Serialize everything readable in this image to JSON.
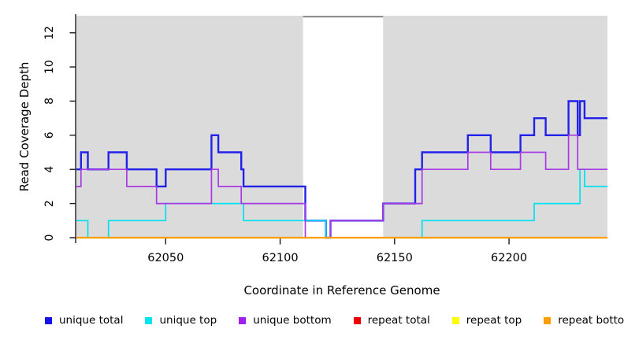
{
  "figure": {
    "ylabel": "Read Coverage Depth",
    "xlabel": "Coordinate in Reference Genome"
  },
  "chart_data": {
    "type": "line",
    "subtype": "step-coverage-plot",
    "title": "",
    "xlabel": "Coordinate in Reference Genome",
    "ylabel": "Read Coverage Depth",
    "xlim": [
      62011,
      62243
    ],
    "ylim": [
      0,
      13
    ],
    "x_ticks": [
      62050,
      62100,
      62150,
      62200
    ],
    "y_ticks": [
      0,
      2,
      4,
      6,
      8,
      10,
      12
    ],
    "grid": false,
    "legend_position": "bottom",
    "plot_background": "#DBDBDB",
    "axis_color": "#1a1a1a",
    "masked_region": {
      "from": 62110,
      "to": 62145,
      "color": "#FFFFFF",
      "top_bar_color": "#8F8F8F"
    },
    "series": [
      {
        "name": "unique total",
        "color": "#2121EA",
        "line_width": 2.4,
        "steps": [
          [
            62011,
            4
          ],
          [
            62013,
            5
          ],
          [
            62016,
            4
          ],
          [
            62025,
            5
          ],
          [
            62033,
            4
          ],
          [
            62046,
            3
          ],
          [
            62050,
            4
          ],
          [
            62070,
            6
          ],
          [
            62073,
            5
          ],
          [
            62083,
            4
          ],
          [
            62084,
            3
          ],
          [
            62111,
            1
          ],
          [
            62120,
            0
          ],
          [
            62122,
            1
          ],
          [
            62145,
            2
          ],
          [
            62159,
            4
          ],
          [
            62162,
            5
          ],
          [
            62182,
            6
          ],
          [
            62192,
            5
          ],
          [
            62205,
            6
          ],
          [
            62211,
            7
          ],
          [
            62216,
            6
          ],
          [
            62226,
            8
          ],
          [
            62230,
            6
          ],
          [
            62231,
            8
          ],
          [
            62233,
            7
          ]
        ]
      },
      {
        "name": "unique top",
        "color": "#00E1EF",
        "line_width": 1.7,
        "steps": [
          [
            62011,
            1
          ],
          [
            62016,
            0
          ],
          [
            62025,
            1
          ],
          [
            62050,
            2
          ],
          [
            62084,
            1
          ],
          [
            62120,
            0
          ],
          [
            62162,
            1
          ],
          [
            62211,
            2
          ],
          [
            62231,
            4
          ],
          [
            62233,
            3
          ]
        ]
      },
      {
        "name": "unique bottom",
        "color": "#A63BE6",
        "line_width": 1.7,
        "steps": [
          [
            62011,
            3
          ],
          [
            62013,
            4
          ],
          [
            62033,
            3
          ],
          [
            62046,
            2
          ],
          [
            62070,
            4
          ],
          [
            62073,
            3
          ],
          [
            62083,
            2
          ],
          [
            62111,
            0
          ],
          [
            62122,
            1
          ],
          [
            62145,
            2
          ],
          [
            62162,
            4
          ],
          [
            62182,
            5
          ],
          [
            62192,
            4
          ],
          [
            62205,
            5
          ],
          [
            62216,
            4
          ],
          [
            62226,
            6
          ],
          [
            62230,
            4
          ]
        ]
      },
      {
        "name": "repeat total",
        "color": "#EE0000",
        "line_width": 1.4,
        "steps": [
          [
            62011,
            0
          ]
        ]
      },
      {
        "name": "repeat top",
        "color": "#FFFF00",
        "line_width": 1.4,
        "steps": [
          [
            62011,
            0
          ]
        ]
      },
      {
        "name": "repeat bottom",
        "color": "#FF9E00",
        "line_width": 2.2,
        "steps": [
          [
            62011,
            0
          ]
        ]
      }
    ]
  },
  "legend": {
    "items": [
      {
        "label": "unique total",
        "color": "#1414E8"
      },
      {
        "label": "unique top",
        "color": "#00E4F0"
      },
      {
        "label": "unique bottom",
        "color": "#A020F0"
      },
      {
        "label": "repeat total",
        "color": "#EE0000"
      },
      {
        "label": "repeat top",
        "color": "#FFFF00"
      },
      {
        "label": "repeat bottom",
        "color": "#FF9E00"
      }
    ]
  }
}
